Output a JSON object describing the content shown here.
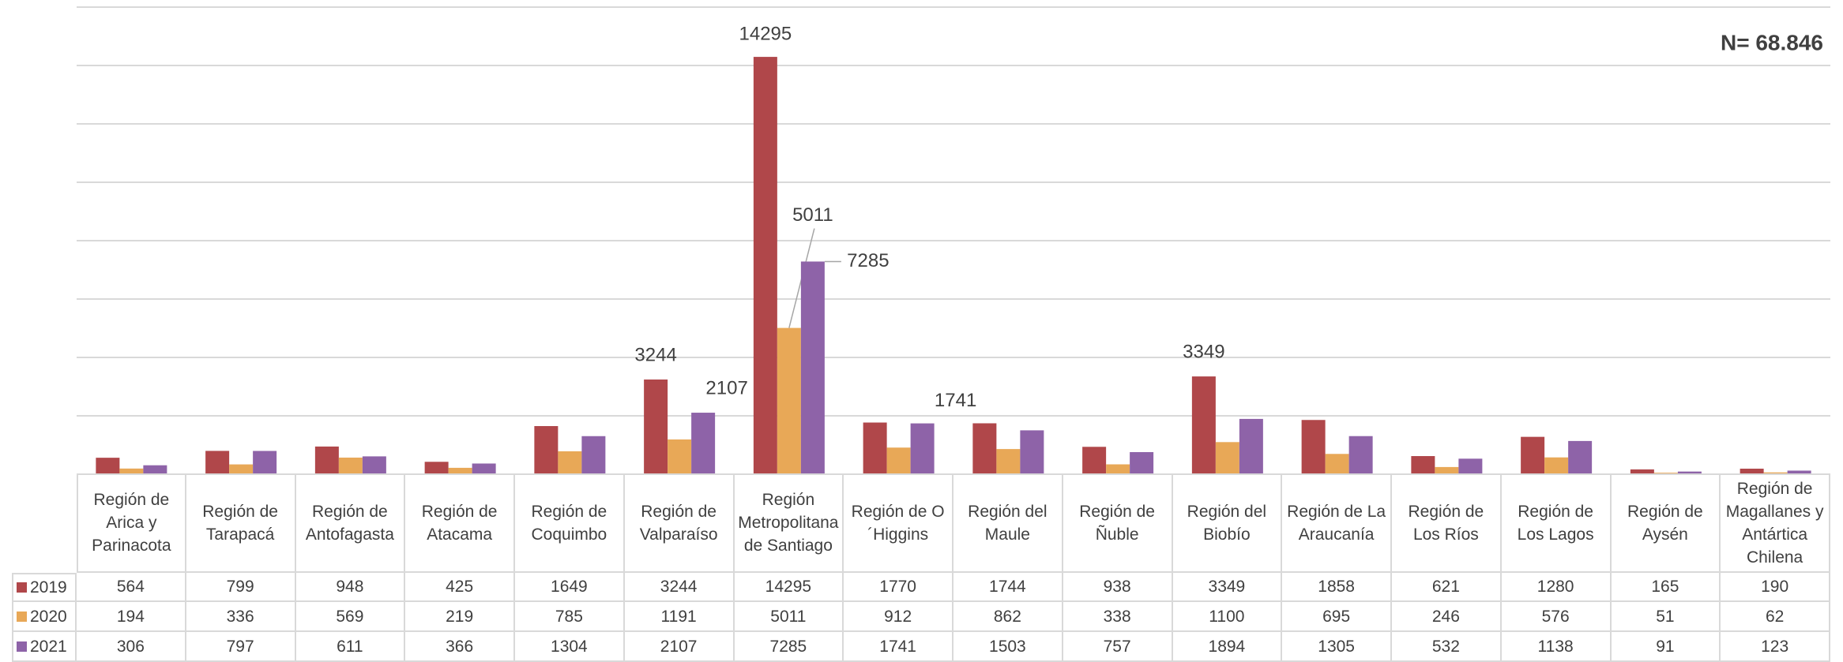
{
  "chart_data": {
    "type": "bar",
    "annotation": "N= 68.846",
    "categories": [
      "Región de Arica y Parinacota",
      "Región de Tarapacá",
      "Región de Antofagasta",
      "Región de Atacama",
      "Región de Coquimbo",
      "Región de Valparaíso",
      "Región Metropolitana de Santiago",
      "Región de O´Higgins",
      "Región del Maule",
      "Región de Ñuble",
      "Región del Biobío",
      "Región de La Araucanía",
      "Región de Los Ríos",
      "Región de Los Lagos",
      "Región de Aysén",
      "Región de Magallanes y Antártica Chilena"
    ],
    "series": [
      {
        "name": "2019",
        "color": "#b0474a",
        "values": [
          564,
          799,
          948,
          425,
          1649,
          3244,
          14295,
          1770,
          1744,
          938,
          3349,
          1858,
          621,
          1280,
          165,
          190
        ]
      },
      {
        "name": "2020",
        "color": "#e8a857",
        "values": [
          194,
          336,
          569,
          219,
          785,
          1191,
          5011,
          912,
          862,
          338,
          1100,
          695,
          246,
          576,
          51,
          62
        ]
      },
      {
        "name": "2021",
        "color": "#8e63a8",
        "values": [
          306,
          797,
          611,
          366,
          1304,
          2107,
          7285,
          1741,
          1503,
          757,
          1894,
          1305,
          532,
          1138,
          91,
          123
        ]
      }
    ],
    "ylim": [
      0,
      16000
    ],
    "yticks": [
      0,
      2000,
      4000,
      6000,
      8000,
      10000,
      12000,
      14000,
      16000
    ],
    "grid": true
  }
}
